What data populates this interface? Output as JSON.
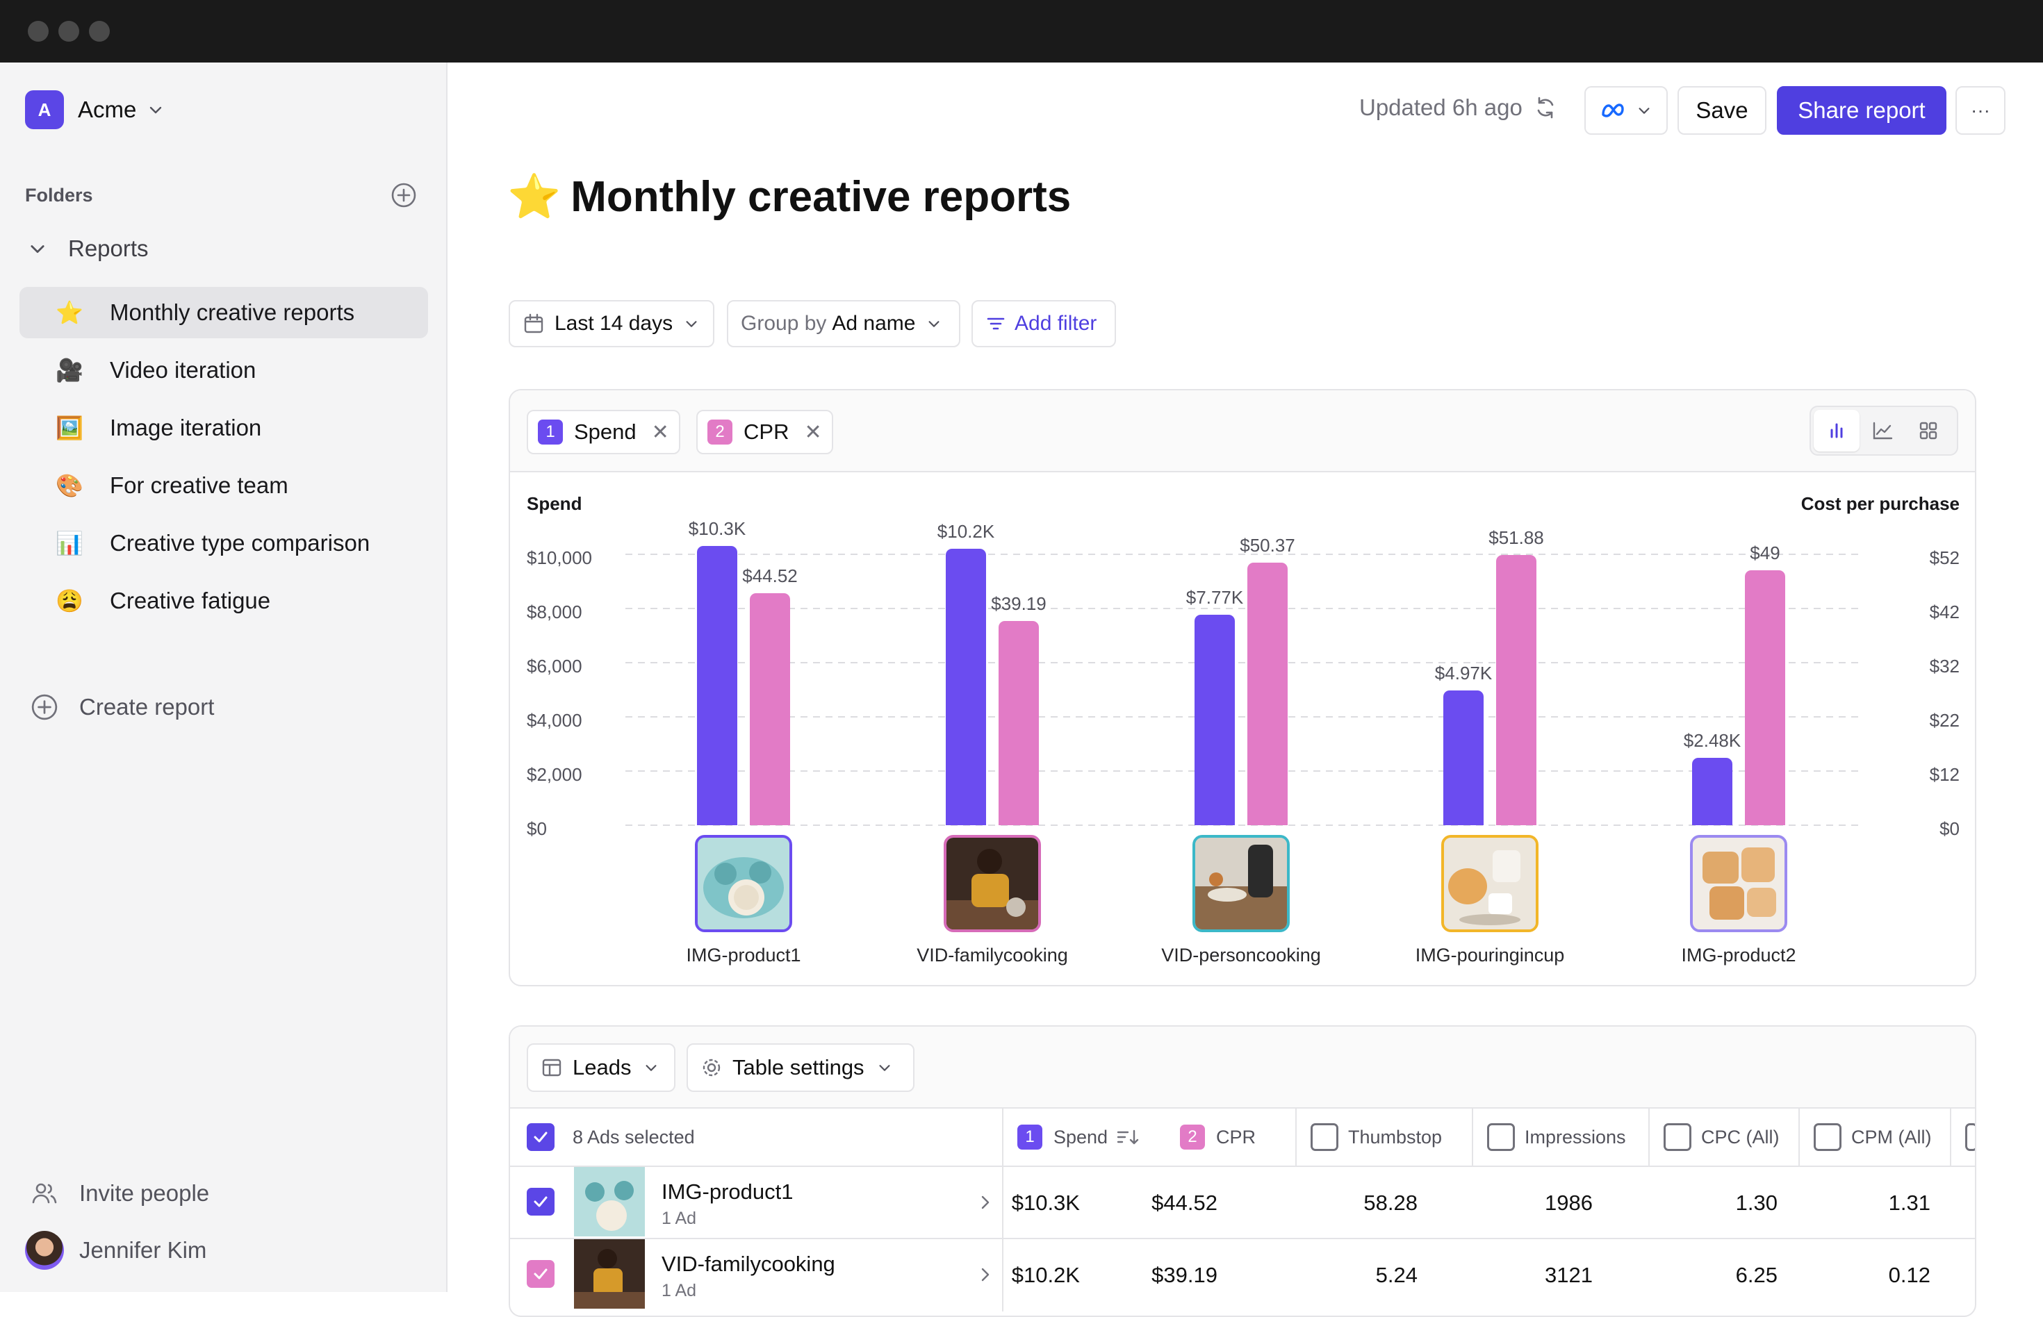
{
  "workspace": {
    "initial": "A",
    "name": "Acme"
  },
  "sidebar": {
    "folders_label": "Folders",
    "parent": "Reports",
    "items": [
      {
        "emoji": "⭐",
        "label": "Monthly creative reports",
        "active": true
      },
      {
        "emoji": "🎥",
        "label": "Video iteration",
        "active": false
      },
      {
        "emoji": "🖼️",
        "label": "Image iteration",
        "active": false
      },
      {
        "emoji": "🎨",
        "label": "For creative team",
        "active": false
      },
      {
        "emoji": "📊",
        "label": "Creative type comparison",
        "active": false
      },
      {
        "emoji": "😩",
        "label": "Creative fatigue",
        "active": false
      }
    ],
    "create_report": "Create report",
    "invite": "Invite people",
    "user": "Jennifer Kim"
  },
  "header": {
    "updated": "Updated 6h ago",
    "save": "Save",
    "share": "Share report",
    "more": "···"
  },
  "page": {
    "star": "⭐",
    "title": "Monthly creative reports"
  },
  "filters": {
    "date": "Last 14 days",
    "group_prefix": "Group by",
    "group_value": "Ad name",
    "add_filter": "Add filter"
  },
  "metrics": [
    {
      "num": "1",
      "label": "Spend",
      "color": "#6b4cf0"
    },
    {
      "num": "2",
      "label": "CPR",
      "color": "#e27bc6"
    }
  ],
  "chart_data": {
    "type": "bar",
    "categories": [
      "IMG-product1",
      "VID-familycooking",
      "VID-personcooking",
      "IMG-pouringincup",
      "IMG-product2"
    ],
    "series": [
      {
        "name": "Spend",
        "axis": "left",
        "color": "#6b4cf0",
        "values": [
          10300,
          10200,
          7770,
          4970,
          2480
        ],
        "labels": [
          "$10.3K",
          "$10.2K",
          "$7.77K",
          "$4.97K",
          "$2.48K"
        ]
      },
      {
        "name": "CPR",
        "axis": "right",
        "color": "#e27bc6",
        "values": [
          44.52,
          39.19,
          50.37,
          51.88,
          49
        ],
        "labels": [
          "$44.52",
          "$39.19",
          "$50.37",
          "$51.88",
          "$49"
        ]
      }
    ],
    "ylabel_left": "Spend",
    "ylabel_right": "Cost per purchase",
    "yticks_left": [
      "$10,000",
      "$8,000",
      "$6,000",
      "$4,000",
      "$2,000",
      "$0"
    ],
    "yticks_right": [
      "$52",
      "$42",
      "$32",
      "$22",
      "$12",
      "$0"
    ],
    "ylim_left": [
      0,
      10000
    ],
    "ylim_right": [
      0,
      52
    ],
    "grid": true,
    "thumb_border_colors": [
      "#6b4cf0",
      "#d66bb8",
      "#3cb8c8",
      "#f2b629",
      "#9b8af0"
    ]
  },
  "table": {
    "leads": "Leads",
    "settings": "Table settings",
    "selected": "8 Ads selected",
    "columns": [
      {
        "num": "1",
        "label": "Spend",
        "color": "#6b4cf0"
      },
      {
        "num": "2",
        "label": "CPR",
        "color": "#e27bc6"
      },
      {
        "label": "Thumbstop"
      },
      {
        "label": "Impressions"
      },
      {
        "label": "CPC (All)"
      },
      {
        "label": "CPM (All)"
      }
    ],
    "rows": [
      {
        "name": "IMG-product1",
        "sub": "1 Ad",
        "spend": "$10.3K",
        "cpr": "$44.52",
        "thumbstop": "58.28",
        "impressions": "1986",
        "cpc": "1.30",
        "cpm": "1.31"
      },
      {
        "name": "VID-familycooking",
        "sub": "1 Ad",
        "spend": "$10.2K",
        "cpr": "$39.19",
        "thumbstop": "5.24",
        "impressions": "3121",
        "cpc": "6.25",
        "cpm": "0.12"
      }
    ]
  }
}
